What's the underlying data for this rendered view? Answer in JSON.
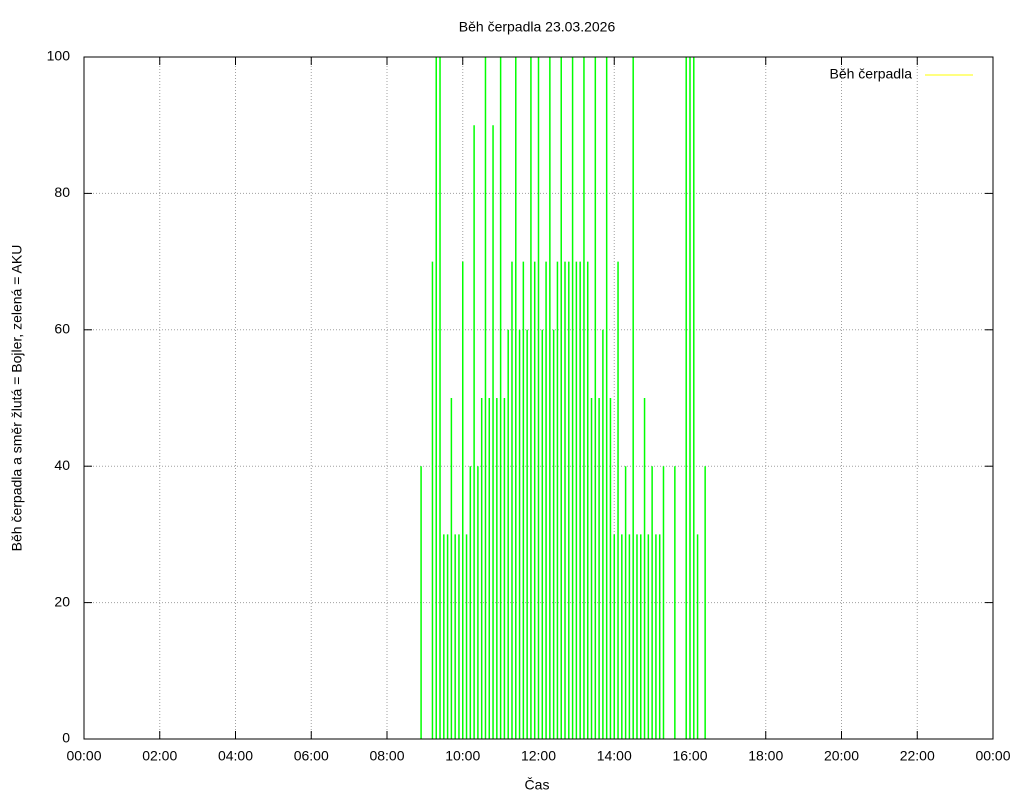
{
  "chart_data": {
    "type": "impulse",
    "title": "Běh čerpadla 23.03.2026",
    "x_label": "Čas",
    "y_label": "Běh čerpadla a směr žlutá = Bojler, zelená = AKU",
    "xlim": [
      0,
      24
    ],
    "xticks": [
      {
        "value": 0,
        "label": "00:00"
      },
      {
        "value": 2,
        "label": "02:00"
      },
      {
        "value": 4,
        "label": "04:00"
      },
      {
        "value": 6,
        "label": "06:00"
      },
      {
        "value": 8,
        "label": "08:00"
      },
      {
        "value": 10,
        "label": "10:00"
      },
      {
        "value": 12,
        "label": "12:00"
      },
      {
        "value": 14,
        "label": "14:00"
      },
      {
        "value": 16,
        "label": "16:00"
      },
      {
        "value": 18,
        "label": "18:00"
      },
      {
        "value": 20,
        "label": "20:00"
      },
      {
        "value": 22,
        "label": "22:00"
      },
      {
        "value": 24,
        "label": "00:00"
      }
    ],
    "ylim": [
      0,
      100
    ],
    "yticks": [
      0,
      20,
      40,
      60,
      80,
      100
    ],
    "grid": true,
    "legend_position": "top-right",
    "legend_line_color": "#ffff00",
    "series": [
      {
        "name": "Běh čerpadla",
        "color": "#00ff00",
        "x": [
          8.9,
          9.0,
          9.1,
          9.2,
          9.3,
          9.4,
          9.5,
          9.6,
          9.7,
          9.8,
          9.9,
          10.0,
          10.1,
          10.2,
          10.3,
          10.4,
          10.5,
          10.6,
          10.7,
          10.8,
          10.9,
          11.0,
          11.1,
          11.2,
          11.3,
          11.4,
          11.5,
          11.6,
          11.7,
          11.8,
          11.9,
          12.0,
          12.1,
          12.2,
          12.3,
          12.4,
          12.5,
          12.6,
          12.7,
          12.8,
          12.9,
          13.0,
          13.1,
          13.2,
          13.3,
          13.4,
          13.5,
          13.6,
          13.7,
          13.8,
          13.9,
          14.0,
          14.1,
          14.2,
          14.3,
          14.4,
          14.5,
          14.6,
          14.7,
          14.8,
          14.9,
          15.0,
          15.1,
          15.2,
          15.3,
          15.4,
          15.5,
          15.6,
          15.7,
          15.8,
          15.9,
          16.0,
          16.1,
          16.2,
          16.3,
          16.4
        ],
        "values": [
          40,
          0,
          0,
          70,
          100,
          100,
          30,
          30,
          50,
          30,
          30,
          70,
          30,
          40,
          90,
          40,
          50,
          100,
          50,
          90,
          50,
          100,
          50,
          60,
          70,
          100,
          60,
          70,
          60,
          100,
          70,
          100,
          60,
          70,
          100,
          60,
          70,
          100,
          70,
          70,
          100,
          70,
          70,
          100,
          70,
          50,
          100,
          50,
          60,
          100,
          50,
          30,
          70,
          30,
          40,
          30,
          100,
          30,
          30,
          50,
          30,
          40,
          30,
          30,
          40,
          0,
          0,
          40,
          0,
          0,
          100,
          100,
          100,
          30,
          0,
          40
        ]
      }
    ]
  }
}
